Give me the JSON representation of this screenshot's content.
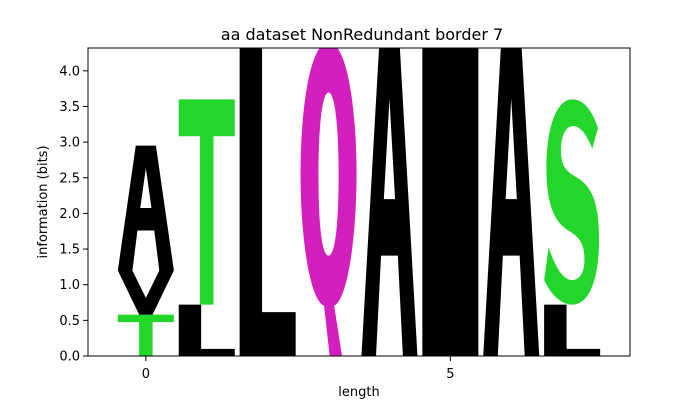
{
  "chart_data": {
    "type": "sequence-logo",
    "title": "aa dataset NonRedundant border 7",
    "xlabel": "length",
    "ylabel": "information (bits)",
    "xlim": [
      -0.95,
      7.95
    ],
    "ylim": [
      0,
      4.32
    ],
    "x_ticks": [
      0,
      5
    ],
    "y_ticks": [
      0.0,
      0.5,
      1.0,
      1.5,
      2.0,
      2.5,
      3.0,
      3.5,
      4.0
    ],
    "colors": {
      "hydrophobic": "#000000",
      "polar": "#22d62a",
      "amide": "#d21fbd"
    },
    "positions": [
      {
        "x": 0,
        "letters": [
          {
            "char": "T",
            "bottom": 0.0,
            "top": 0.58,
            "color": "#22d62a"
          },
          {
            "char": "V",
            "bottom": 0.58,
            "top": 1.2,
            "color": "#000000"
          },
          {
            "char": "A",
            "bottom": 1.2,
            "top": 2.95,
            "color": "#000000"
          }
        ]
      },
      {
        "x": 1,
        "letters": [
          {
            "char": "L",
            "bottom": 0.0,
            "top": 0.72,
            "color": "#000000"
          },
          {
            "char": "T",
            "bottom": 0.72,
            "top": 3.6,
            "color": "#22d62a"
          }
        ]
      },
      {
        "x": 2,
        "letters": [
          {
            "char": "L",
            "bottom": 0.0,
            "top": 4.4,
            "color": "#000000"
          }
        ]
      },
      {
        "x": 3,
        "letters": [
          {
            "char": "Q",
            "bottom": 0.0,
            "top": 4.4,
            "color": "#d21fbd"
          }
        ]
      },
      {
        "x": 4,
        "letters": [
          {
            "char": "A",
            "bottom": 0.0,
            "top": 4.4,
            "color": "#000000"
          }
        ]
      },
      {
        "x": 5,
        "letters": [
          {
            "char": "I",
            "bottom": 0.0,
            "top": 4.4,
            "color": "#000000"
          }
        ]
      },
      {
        "x": 6,
        "letters": [
          {
            "char": "A",
            "bottom": 0.0,
            "top": 4.4,
            "color": "#000000"
          }
        ]
      },
      {
        "x": 7,
        "letters": [
          {
            "char": "L",
            "bottom": 0.0,
            "top": 0.72,
            "color": "#000000"
          },
          {
            "char": "S",
            "bottom": 0.72,
            "top": 3.6,
            "color": "#22d62a"
          }
        ]
      }
    ]
  }
}
